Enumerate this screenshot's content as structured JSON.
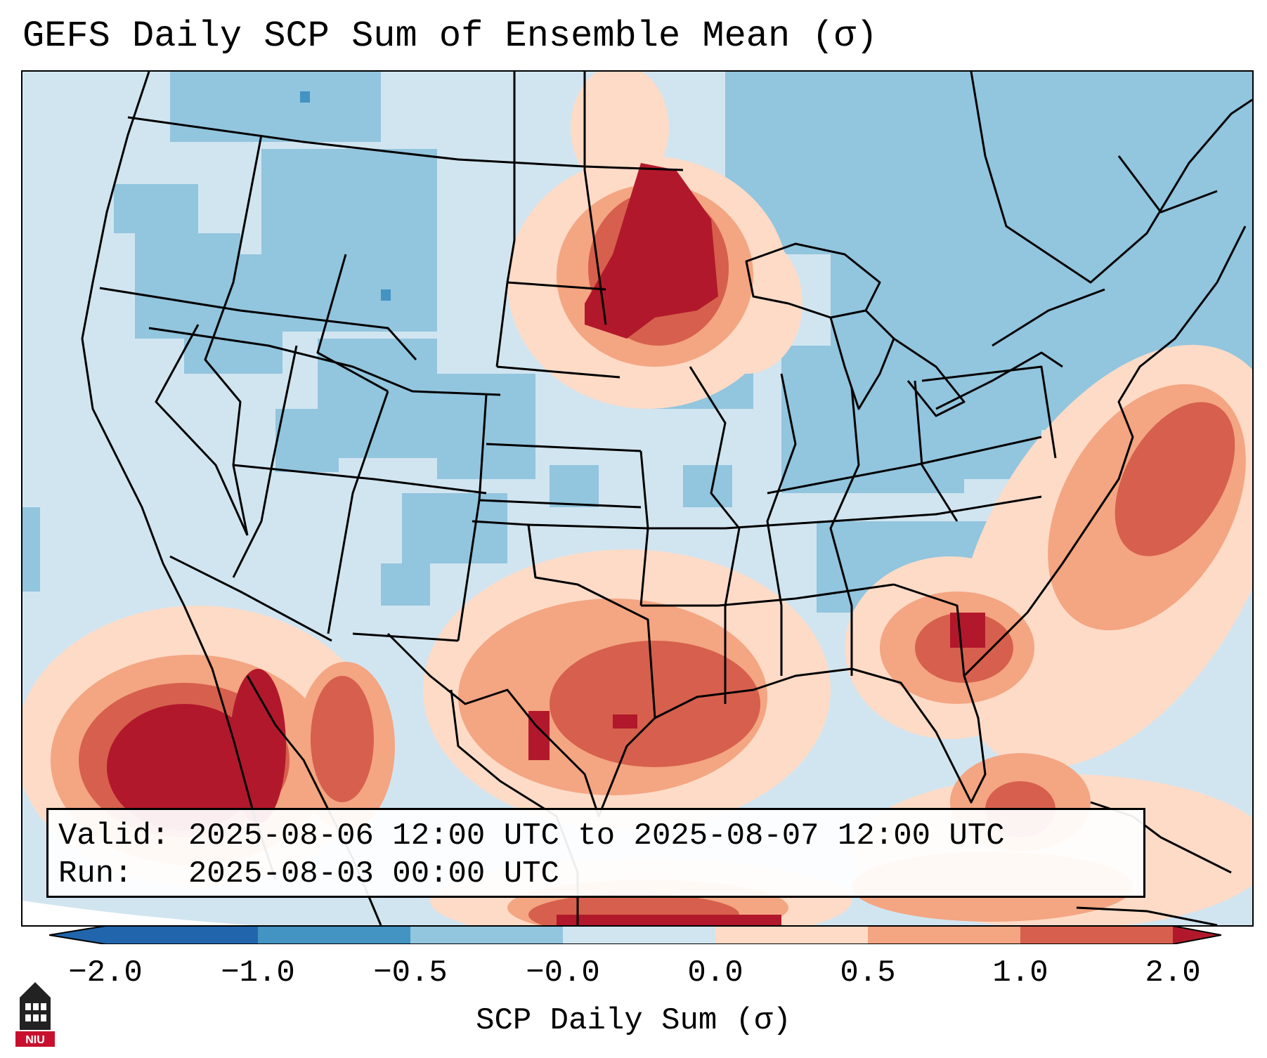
{
  "title": "GEFS Daily SCP Sum of Ensemble Mean (σ)",
  "info": {
    "valid_label": "Valid:",
    "valid_value": "2025-08-06 12:00 UTC to 2025-08-07 12:00 UTC",
    "run_label": "Run:",
    "run_value": "2025-08-03 00:00 UTC"
  },
  "colorbar": {
    "label": "SCP Daily Sum (σ)",
    "ticks": [
      "−2.0",
      "−1.0",
      "−0.5",
      "−0.0",
      "0.0",
      "0.5",
      "1.0",
      "2.0"
    ],
    "colors": [
      "#2166ac",
      "#4393c3",
      "#92c5de",
      "#d1e5f0",
      "#fddbc7",
      "#f4a582",
      "#d6604d",
      "#b2182b"
    ]
  },
  "logo": {
    "text": "NIU",
    "icon": "university-tower-icon"
  }
}
